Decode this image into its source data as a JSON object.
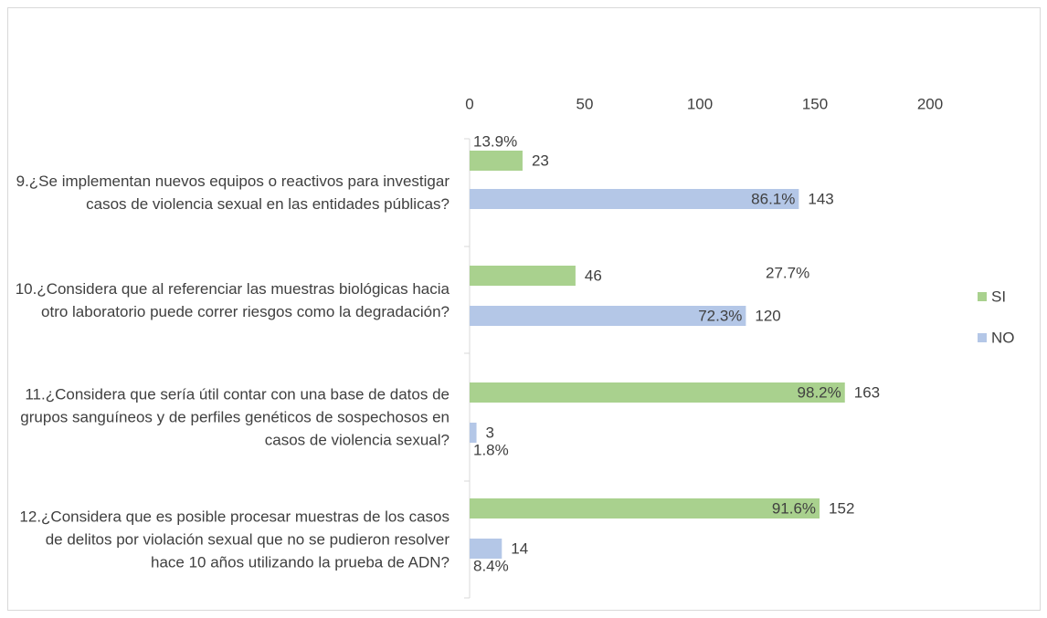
{
  "chart_data": {
    "type": "bar",
    "orientation": "horizontal",
    "categories": [
      "9.¿Se implementan  nuevos equipos o reactivos para investigar  casos de violencia sexual en las entidades públicas?",
      "10.¿Considera que al  referenciar las muestras biológicas hacia otro laboratorio puede correr riesgos como la degradación?",
      "11.¿Considera que sería útil contar con una base de datos de grupos sanguíneos y de perfiles genéticos  de sospechosos en  casos de violencia sexual?",
      "12.¿Considera que es posible procesar muestras de los casos de delitos por violación sexual que no se pudieron resolver hace 10 años utilizando la prueba de ADN?"
    ],
    "series": [
      {
        "name": "SI",
        "color": "#a9d18e",
        "values": [
          23,
          46,
          163,
          152
        ],
        "percentages": [
          "13.9%",
          "27.7%",
          "98.2%",
          "91.6%"
        ]
      },
      {
        "name": "NO",
        "color": "#b4c7e7",
        "values": [
          143,
          120,
          3,
          14
        ],
        "percentages": [
          "86.1%",
          "72.3%",
          "1.8%",
          "8.4%"
        ]
      }
    ],
    "xlim": [
      0,
      200
    ],
    "xticks": [
      0,
      50,
      100,
      150,
      200
    ],
    "legend": "right"
  }
}
